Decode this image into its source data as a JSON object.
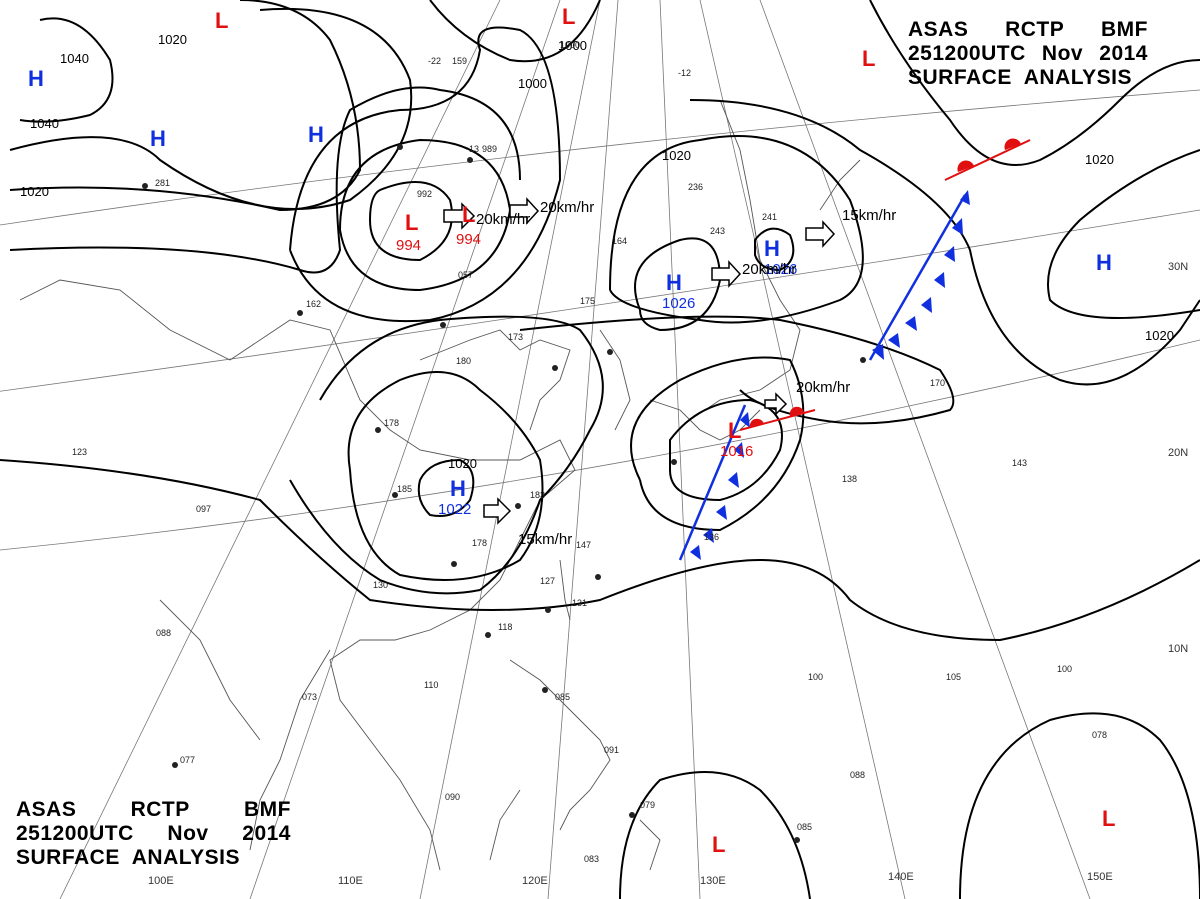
{
  "header_top": {
    "line1": [
      "ASAS",
      "RCTP",
      "BMF"
    ],
    "line2": [
      "251200UTC",
      "Nov",
      "2014"
    ],
    "line3": "SURFACE  ANALYSIS"
  },
  "header_bottom": {
    "line1": [
      "ASAS",
      "RCTP",
      "BMF"
    ],
    "line2": [
      "251200UTC",
      "Nov",
      "2014"
    ],
    "line3": "SURFACE  ANALYSIS"
  },
  "colors": {
    "high": "#1030e0",
    "low": "#e01010",
    "isobar": "#000000",
    "grid": "#555555",
    "coast": "#444444"
  },
  "isobar_labels": [
    "1040",
    "1040",
    "1020",
    "1020",
    "1000",
    "1000",
    "1020",
    "1020",
    "1020",
    "1020"
  ],
  "pressure_centers": [
    {
      "type": "H",
      "value": ""
    },
    {
      "type": "H",
      "value": ""
    },
    {
      "type": "H",
      "value": ""
    },
    {
      "type": "L",
      "value": ""
    },
    {
      "type": "L",
      "value": ""
    },
    {
      "type": "L",
      "value": "994"
    },
    {
      "type": "L",
      "value": "994"
    },
    {
      "type": "H",
      "value": "1026"
    },
    {
      "type": "H",
      "value": "1026"
    },
    {
      "type": "H",
      "value": ""
    },
    {
      "type": "H",
      "value": "1022"
    },
    {
      "type": "L",
      "value": "1016"
    },
    {
      "type": "L",
      "value": ""
    },
    {
      "type": "L",
      "value": ""
    },
    {
      "type": "L",
      "value": ""
    }
  ],
  "motion_vectors": [
    "20km/hr",
    "20km/hr",
    "20km/hr",
    "15km/hr",
    "20km/hr",
    "15km/hr"
  ],
  "longitude_labels": [
    "100E",
    "110E",
    "120E",
    "130E",
    "140E",
    "150E"
  ],
  "latitude_labels": [
    "30N",
    "20N",
    "10N"
  ],
  "station_values": [
    "281",
    "-22",
    "159",
    "-13",
    "989",
    "992",
    "057",
    "164",
    "175",
    "236",
    "243",
    "241",
    "162",
    "180",
    "173",
    "178",
    "185",
    "183",
    "178",
    "123",
    "097",
    "130",
    "147",
    "127",
    "131",
    "118",
    "110",
    "073",
    "088",
    "085",
    "091",
    "077",
    "090",
    "083",
    "079",
    "085",
    "136",
    "138",
    "143",
    "170",
    "100",
    "105",
    "100",
    "078",
    "088",
    "1000",
    "-12"
  ]
}
